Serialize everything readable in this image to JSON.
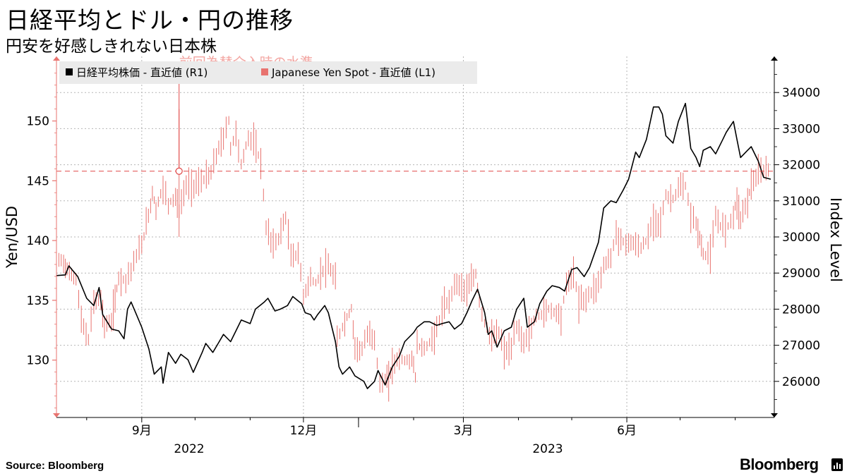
{
  "header": {
    "title": "日経平均とドル・円の推移",
    "subtitle": "円安を好感しきれない日本株"
  },
  "footer": {
    "source": "Source:  Bloomberg",
    "brand": "Bloomberg"
  },
  "colors": {
    "nikkei": "#000000",
    "yen": "#e8736f",
    "ref_line": "#e04848",
    "grid": "#b5b5b5"
  },
  "chart_data": {
    "type": "line",
    "x_tick_labels": [
      "9月",
      "12月",
      "3月",
      "6月"
    ],
    "x_year_labels": [
      "2022",
      "2023"
    ],
    "left_axis": {
      "label": "Yen/USD",
      "ticks": [
        130,
        135,
        140,
        145,
        150
      ],
      "range": [
        125.2,
        155.4
      ]
    },
    "right_axis": {
      "label": "Index Level",
      "ticks": [
        26000,
        27000,
        28000,
        29000,
        30000,
        31000,
        32000,
        33000,
        34000
      ],
      "range": [
        25000,
        35000
      ]
    },
    "legend": {
      "position": "top-left",
      "entries": [
        "日経平均株価 - 直近値 (R1)",
        "Japanese Yen Spot - 直近値 (L1)"
      ]
    },
    "annotation": {
      "text": "前回為替介入時の水準",
      "value": 145.8,
      "x": "2022-09-22"
    },
    "series": [
      {
        "name": "日経平均株価 - 直近値 (R1)",
        "axis": "right",
        "points": [
          [
            "2022-07-15",
            28930
          ],
          [
            "2022-07-20",
            28950
          ],
          [
            "2022-07-22",
            29200
          ],
          [
            "2022-07-27",
            28900
          ],
          [
            "2022-08-01",
            28300
          ],
          [
            "2022-08-05",
            28100
          ],
          [
            "2022-08-08",
            28600
          ],
          [
            "2022-08-10",
            27850
          ],
          [
            "2022-08-15",
            27450
          ],
          [
            "2022-08-19",
            27400
          ],
          [
            "2022-08-22",
            27180
          ],
          [
            "2022-08-24",
            28000
          ],
          [
            "2022-08-26",
            28200
          ],
          [
            "2022-08-29",
            27850
          ],
          [
            "2022-09-01",
            27500
          ],
          [
            "2022-09-05",
            26900
          ],
          [
            "2022-09-08",
            26200
          ],
          [
            "2022-09-12",
            26400
          ],
          [
            "2022-09-13",
            25950
          ],
          [
            "2022-09-16",
            26800
          ],
          [
            "2022-09-20",
            26500
          ],
          [
            "2022-09-23",
            26750
          ],
          [
            "2022-09-27",
            26600
          ],
          [
            "2022-09-30",
            26250
          ],
          [
            "2022-10-05",
            26800
          ],
          [
            "2022-10-07",
            27050
          ],
          [
            "2022-10-11",
            26800
          ],
          [
            "2022-10-14",
            27050
          ],
          [
            "2022-10-17",
            27300
          ],
          [
            "2022-10-21",
            27100
          ],
          [
            "2022-10-24",
            27400
          ],
          [
            "2022-10-27",
            27700
          ],
          [
            "2022-11-01",
            27600
          ],
          [
            "2022-11-04",
            28000
          ],
          [
            "2022-11-09",
            28200
          ],
          [
            "2022-11-11",
            28300
          ],
          [
            "2022-11-15",
            27950
          ],
          [
            "2022-11-18",
            28000
          ],
          [
            "2022-11-22",
            28100
          ],
          [
            "2022-11-25",
            28350
          ],
          [
            "2022-11-30",
            28150
          ],
          [
            "2022-12-02",
            27900
          ],
          [
            "2022-12-05",
            27850
          ],
          [
            "2022-12-07",
            27700
          ],
          [
            "2022-12-09",
            27850
          ],
          [
            "2022-12-13",
            28100
          ],
          [
            "2022-12-15",
            27900
          ],
          [
            "2022-12-19",
            27100
          ],
          [
            "2022-12-21",
            26400
          ],
          [
            "2022-12-23",
            26200
          ],
          [
            "2022-12-27",
            26400
          ],
          [
            "2022-12-30",
            26150
          ],
          [
            "2023-01-04",
            26000
          ],
          [
            "2023-01-06",
            25800
          ],
          [
            "2023-01-10",
            26000
          ],
          [
            "2023-01-12",
            26300
          ],
          [
            "2023-01-16",
            25900
          ],
          [
            "2023-01-20",
            26400
          ],
          [
            "2023-01-24",
            26700
          ],
          [
            "2023-01-27",
            27100
          ],
          [
            "2023-02-01",
            27350
          ],
          [
            "2023-02-03",
            27500
          ],
          [
            "2023-02-07",
            27650
          ],
          [
            "2023-02-10",
            27650
          ],
          [
            "2023-02-14",
            27550
          ],
          [
            "2023-02-17",
            27600
          ],
          [
            "2023-02-21",
            27650
          ],
          [
            "2023-02-24",
            27450
          ],
          [
            "2023-02-28",
            27600
          ],
          [
            "2023-03-03",
            27900
          ],
          [
            "2023-03-06",
            28250
          ],
          [
            "2023-03-09",
            28550
          ],
          [
            "2023-03-13",
            27900
          ],
          [
            "2023-03-15",
            27300
          ],
          [
            "2023-03-17",
            27400
          ],
          [
            "2023-03-20",
            26950
          ],
          [
            "2023-03-24",
            27400
          ],
          [
            "2023-03-28",
            27500
          ],
          [
            "2023-03-31",
            28000
          ],
          [
            "2023-04-04",
            28300
          ],
          [
            "2023-04-06",
            27500
          ],
          [
            "2023-04-10",
            27650
          ],
          [
            "2023-04-13",
            28150
          ],
          [
            "2023-04-17",
            28500
          ],
          [
            "2023-04-20",
            28650
          ],
          [
            "2023-04-24",
            28600
          ],
          [
            "2023-04-27",
            28500
          ],
          [
            "2023-05-01",
            29100
          ],
          [
            "2023-05-04",
            29150
          ],
          [
            "2023-05-08",
            28900
          ],
          [
            "2023-05-11",
            29150
          ],
          [
            "2023-05-16",
            29850
          ],
          [
            "2023-05-19",
            30800
          ],
          [
            "2023-05-23",
            31000
          ],
          [
            "2023-05-26",
            30950
          ],
          [
            "2023-05-30",
            31300
          ],
          [
            "2023-06-02",
            31600
          ],
          [
            "2023-06-06",
            32350
          ],
          [
            "2023-06-08",
            32200
          ],
          [
            "2023-06-12",
            32700
          ],
          [
            "2023-06-16",
            33600
          ],
          [
            "2023-06-19",
            33600
          ],
          [
            "2023-06-21",
            33400
          ],
          [
            "2023-06-23",
            32800
          ],
          [
            "2023-06-27",
            32600
          ],
          [
            "2023-06-30",
            33200
          ],
          [
            "2023-07-04",
            33700
          ],
          [
            "2023-07-07",
            32450
          ],
          [
            "2023-07-10",
            32200
          ],
          [
            "2023-07-12",
            31950
          ],
          [
            "2023-07-14",
            32400
          ],
          [
            "2023-07-18",
            32500
          ],
          [
            "2023-07-21",
            32300
          ],
          [
            "2023-07-25",
            32700
          ],
          [
            "2023-07-27",
            32900
          ],
          [
            "2023-07-31",
            33200
          ],
          [
            "2023-08-02",
            32700
          ],
          [
            "2023-08-04",
            32200
          ],
          [
            "2023-08-08",
            32400
          ],
          [
            "2023-08-10",
            32500
          ],
          [
            "2023-08-14",
            32100
          ],
          [
            "2023-08-17",
            31650
          ],
          [
            "2023-08-21",
            31600
          ]
        ]
      },
      {
        "name": "Japanese Yen Spot - 直近値 (L1)",
        "axis": "left",
        "points": [
          [
            "2022-07-15",
            138.5
          ],
          [
            "2022-07-19",
            138.2
          ],
          [
            "2022-07-21",
            137.5
          ],
          [
            "2022-07-26",
            136.8
          ],
          [
            "2022-07-29",
            133.3
          ],
          [
            "2022-08-02",
            131.6
          ],
          [
            "2022-08-05",
            135.0
          ],
          [
            "2022-08-09",
            135.0
          ],
          [
            "2022-08-11",
            132.9
          ],
          [
            "2022-08-15",
            133.2
          ],
          [
            "2022-08-17",
            135.1
          ],
          [
            "2022-08-19",
            136.9
          ],
          [
            "2022-08-23",
            136.7
          ],
          [
            "2022-08-26",
            137.6
          ],
          [
            "2022-08-29",
            138.7
          ],
          [
            "2022-09-01",
            139.6
          ],
          [
            "2022-09-06",
            143.0
          ],
          [
            "2022-09-07",
            144.1
          ],
          [
            "2022-09-09",
            142.6
          ],
          [
            "2022-09-13",
            144.5
          ],
          [
            "2022-09-16",
            143.1
          ],
          [
            "2022-09-20",
            143.7
          ],
          [
            "2022-09-22",
            142.4
          ],
          [
            "2022-09-26",
            144.7
          ],
          [
            "2022-09-29",
            144.5
          ],
          [
            "2022-10-03",
            144.8
          ],
          [
            "2022-10-06",
            145.1
          ],
          [
            "2022-10-10",
            145.6
          ],
          [
            "2022-10-13",
            147.2
          ],
          [
            "2022-10-17",
            148.6
          ],
          [
            "2022-10-20",
            150.1
          ],
          [
            "2022-10-21",
            147.7
          ],
          [
            "2022-10-24",
            149.0
          ],
          [
            "2022-10-27",
            146.3
          ],
          [
            "2022-10-31",
            148.7
          ],
          [
            "2022-11-03",
            148.2
          ],
          [
            "2022-11-07",
            146.6
          ],
          [
            "2022-11-10",
            141.0
          ],
          [
            "2022-11-14",
            139.6
          ],
          [
            "2022-11-17",
            140.2
          ],
          [
            "2022-11-21",
            142.0
          ],
          [
            "2022-11-24",
            138.6
          ],
          [
            "2022-11-28",
            138.9
          ],
          [
            "2022-12-01",
            135.4
          ],
          [
            "2022-12-05",
            136.8
          ],
          [
            "2022-12-08",
            136.4
          ],
          [
            "2022-12-12",
            137.6
          ],
          [
            "2022-12-15",
            137.7
          ],
          [
            "2022-12-19",
            136.8
          ],
          [
            "2022-12-20",
            131.7
          ],
          [
            "2022-12-23",
            132.8
          ],
          [
            "2022-12-28",
            134.3
          ],
          [
            "2022-12-30",
            131.1
          ],
          [
            "2023-01-03",
            130.9
          ],
          [
            "2023-01-06",
            132.1
          ],
          [
            "2023-01-10",
            131.8
          ],
          [
            "2023-01-13",
            127.9
          ],
          [
            "2023-01-16",
            128.4
          ],
          [
            "2023-01-18",
            128.3
          ],
          [
            "2023-01-20",
            129.6
          ],
          [
            "2023-01-24",
            130.2
          ],
          [
            "2023-01-27",
            129.9
          ],
          [
            "2023-01-31",
            130.1
          ],
          [
            "2023-02-02",
            128.7
          ],
          [
            "2023-02-03",
            131.2
          ],
          [
            "2023-02-07",
            131.0
          ],
          [
            "2023-02-10",
            131.4
          ],
          [
            "2023-02-14",
            132.5
          ],
          [
            "2023-02-17",
            134.2
          ],
          [
            "2023-02-21",
            134.9
          ],
          [
            "2023-02-24",
            136.5
          ],
          [
            "2023-02-28",
            136.2
          ],
          [
            "2023-03-03",
            135.8
          ],
          [
            "2023-03-08",
            137.2
          ],
          [
            "2023-03-10",
            134.9
          ],
          [
            "2023-03-13",
            133.1
          ],
          [
            "2023-03-17",
            131.8
          ],
          [
            "2023-03-21",
            132.3
          ],
          [
            "2023-03-24",
            130.7
          ],
          [
            "2023-03-28",
            130.9
          ],
          [
            "2023-03-31",
            132.8
          ],
          [
            "2023-04-04",
            131.5
          ],
          [
            "2023-04-07",
            132.2
          ],
          [
            "2023-04-11",
            133.7
          ],
          [
            "2023-04-14",
            133.8
          ],
          [
            "2023-04-18",
            134.3
          ],
          [
            "2023-04-21",
            134.1
          ],
          [
            "2023-04-25",
            133.7
          ],
          [
            "2023-04-28",
            136.3
          ],
          [
            "2023-05-02",
            137.3
          ],
          [
            "2023-05-05",
            134.8
          ],
          [
            "2023-05-09",
            135.2
          ],
          [
            "2023-05-12",
            135.7
          ],
          [
            "2023-05-16",
            136.4
          ],
          [
            "2023-05-19",
            137.9
          ],
          [
            "2023-05-23",
            138.6
          ],
          [
            "2023-05-26",
            140.6
          ],
          [
            "2023-05-30",
            139.8
          ],
          [
            "2023-06-02",
            139.9
          ],
          [
            "2023-06-06",
            139.6
          ],
          [
            "2023-06-09",
            139.4
          ],
          [
            "2023-06-13",
            140.2
          ],
          [
            "2023-06-16",
            141.8
          ],
          [
            "2023-06-20",
            141.6
          ],
          [
            "2023-06-23",
            143.7
          ],
          [
            "2023-06-27",
            143.5
          ],
          [
            "2023-06-30",
            144.3
          ],
          [
            "2023-07-04",
            144.5
          ],
          [
            "2023-07-07",
            142.1
          ],
          [
            "2023-07-10",
            141.4
          ],
          [
            "2023-07-12",
            140.2
          ],
          [
            "2023-07-14",
            138.8
          ],
          [
            "2023-07-18",
            138.9
          ],
          [
            "2023-07-21",
            141.7
          ],
          [
            "2023-07-25",
            141.1
          ],
          [
            "2023-07-28",
            141.2
          ],
          [
            "2023-07-31",
            142.3
          ],
          [
            "2023-08-02",
            143.3
          ],
          [
            "2023-08-04",
            141.8
          ],
          [
            "2023-08-08",
            143.4
          ],
          [
            "2023-08-10",
            144.7
          ],
          [
            "2023-08-14",
            145.5
          ],
          [
            "2023-08-17",
            145.8
          ],
          [
            "2023-08-21",
            146.1
          ]
        ]
      }
    ]
  }
}
